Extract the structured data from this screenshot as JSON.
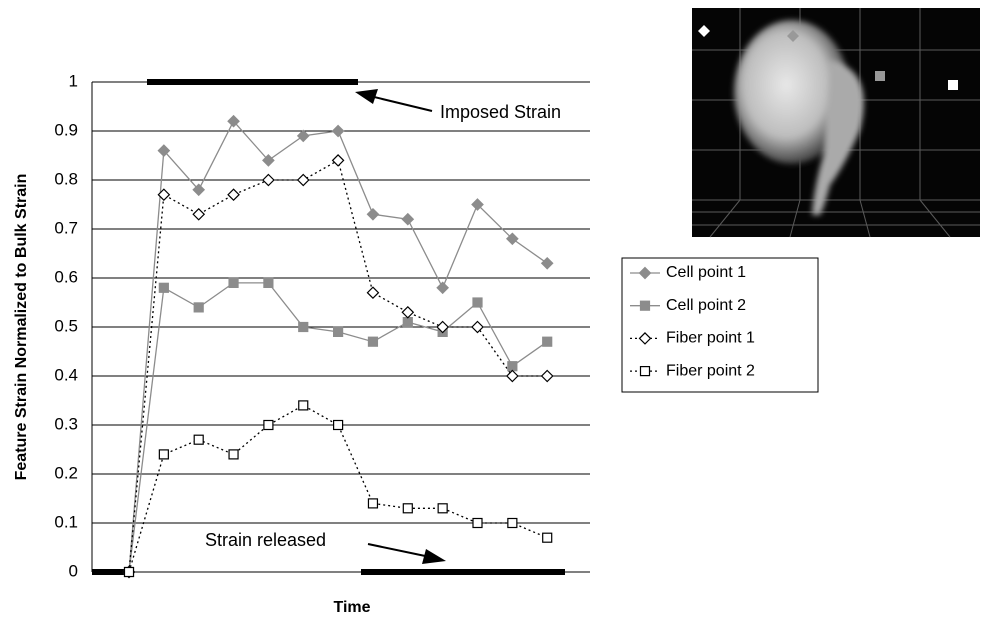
{
  "chart_data": {
    "type": "line",
    "y_label": "Feature Strain Normalized to Bulk Strain",
    "x_label": "Time",
    "annotations": [
      "Imposed Strain",
      "Strain released"
    ],
    "categories": [
      null,
      null,
      null,
      null,
      null,
      null,
      null,
      null,
      null,
      null,
      null,
      null,
      null
    ],
    "ylim": [
      0,
      1
    ],
    "yticks": [
      0,
      0.1,
      0.2,
      0.3,
      0.4,
      0.5,
      0.6,
      0.7,
      0.8,
      0.9,
      1
    ],
    "grid": true,
    "series": [
      {
        "name": "Cell point 1",
        "color": "#8c8c8c",
        "marker": "diamond",
        "marker_fill": "#8c8c8c",
        "dashed": false,
        "values": [
          0,
          0.86,
          0.78,
          0.92,
          0.84,
          0.89,
          0.9,
          0.73,
          0.72,
          0.58,
          0.75,
          0.68,
          0.63
        ]
      },
      {
        "name": "Cell point 2",
        "color": "#8c8c8c",
        "marker": "square",
        "marker_fill": "#8c8c8c",
        "dashed": false,
        "values": [
          0,
          0.58,
          0.54,
          0.59,
          0.59,
          0.5,
          0.49,
          0.47,
          0.51,
          0.49,
          0.55,
          0.42,
          0.47
        ]
      },
      {
        "name": "Fiber point 1",
        "color": "#000000",
        "marker": "diamond",
        "marker_fill": "#ffffff",
        "dashed": true,
        "values": [
          0,
          0.77,
          0.73,
          0.77,
          0.8,
          0.8,
          0.84,
          0.57,
          0.53,
          0.5,
          0.5,
          0.4,
          0.4
        ]
      },
      {
        "name": "Fiber point 2",
        "color": "#000000",
        "marker": "square",
        "marker_fill": "#ffffff",
        "dashed": true,
        "values": [
          0,
          0.24,
          0.27,
          0.24,
          0.3,
          0.34,
          0.3,
          0.14,
          0.13,
          0.13,
          0.1,
          0.1,
          0.07
        ]
      }
    ]
  }
}
